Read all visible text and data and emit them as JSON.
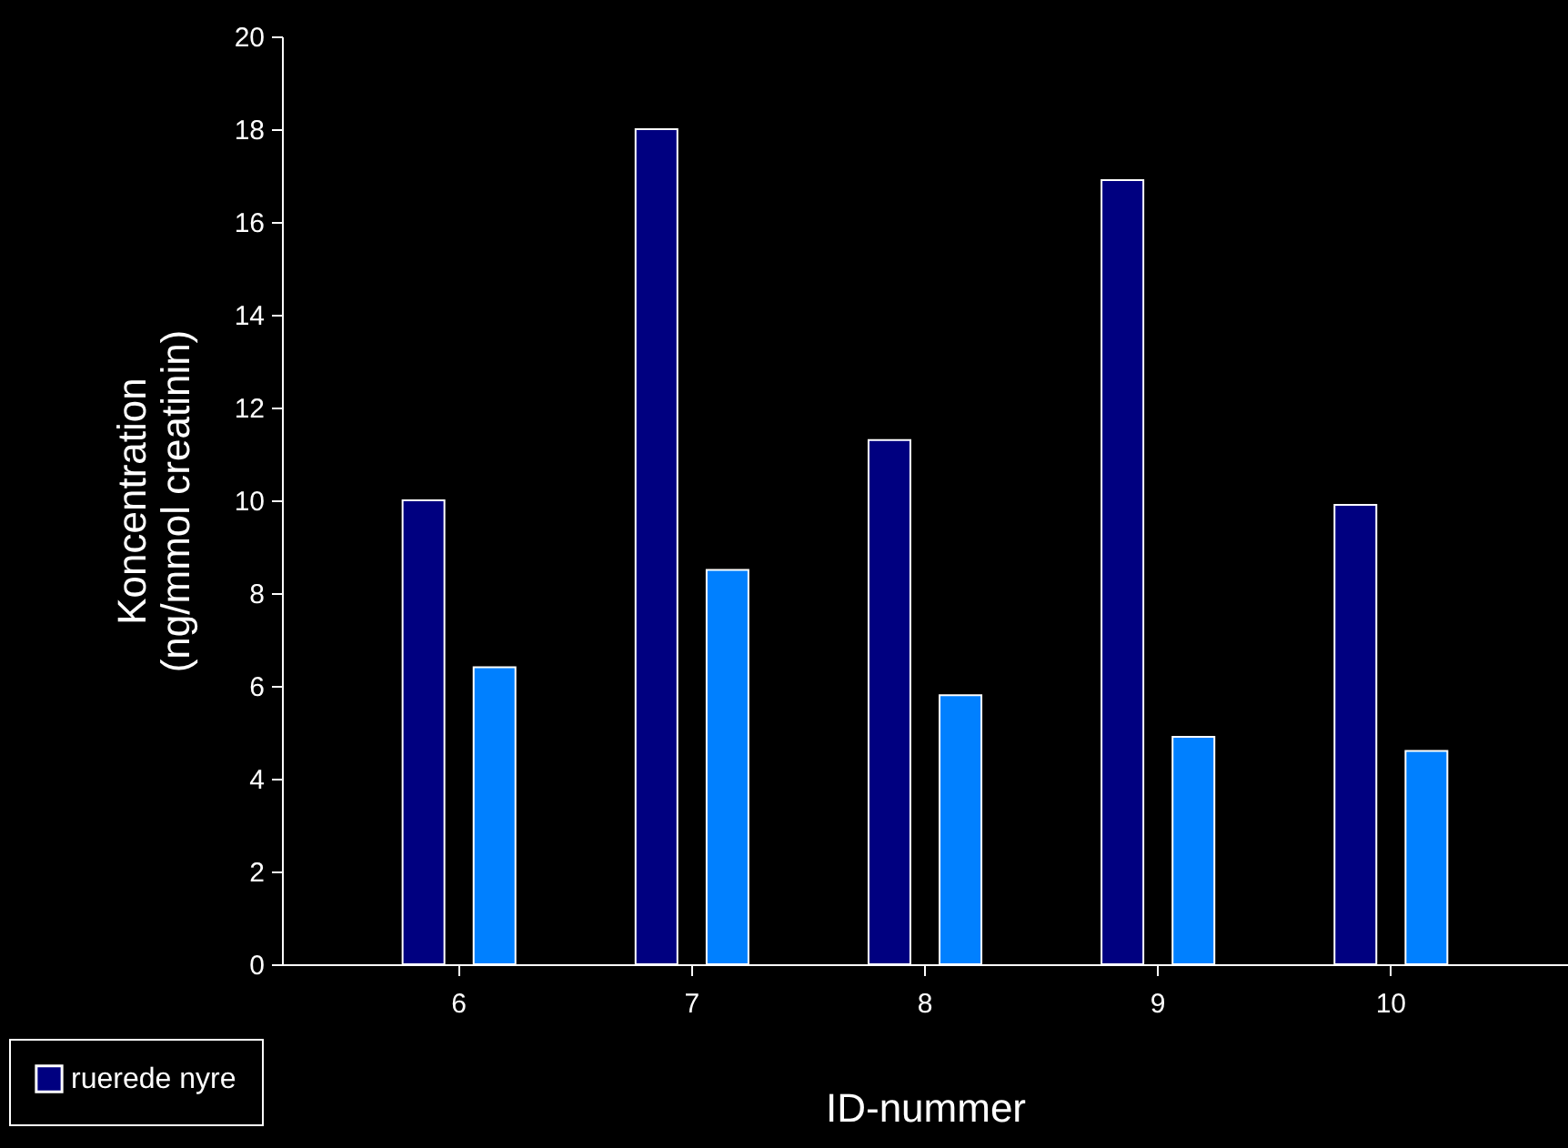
{
  "chart_data": {
    "type": "bar",
    "xlabel": "ID-nummer",
    "ylabel": "Koncentration\n(ng/mmol creatinin)",
    "categories": [
      "6",
      "7",
      "8",
      "9",
      "10"
    ],
    "series": [
      {
        "name": "ruerede nyre",
        "color": "#000080",
        "values": [
          10.0,
          18.0,
          11.3,
          16.9,
          9.9
        ]
      },
      {
        "color": "#0080ff",
        "values": [
          6.4,
          8.5,
          5.8,
          4.9,
          4.6
        ]
      }
    ],
    "ylim": [
      0,
      20
    ],
    "yticks": [
      0,
      2,
      4,
      6,
      8,
      10,
      12,
      14,
      16,
      18,
      20
    ],
    "legend": "bottom left"
  }
}
